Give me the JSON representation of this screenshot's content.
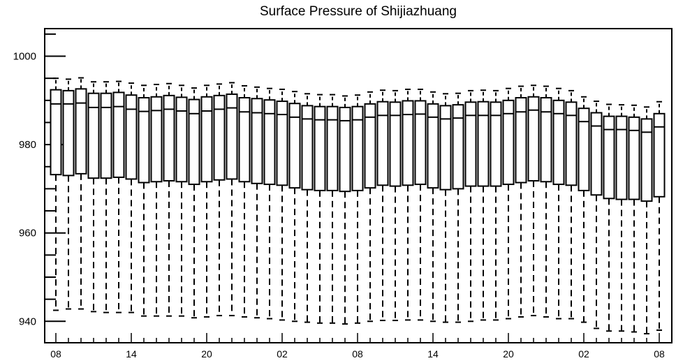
{
  "chart_data": {
    "type": "box",
    "title": "Surface Pressure of Shijiazhuang",
    "xlabel": "",
    "ylabel": "",
    "ylim": [
      935,
      1006
    ],
    "yticks": [
      940,
      960,
      980,
      1000
    ],
    "xtick_labels": [
      "08",
      "14",
      "20",
      "02",
      "08",
      "14",
      "20",
      "02",
      "08"
    ],
    "xtick_positions": [
      0,
      6,
      12,
      18,
      24,
      30,
      36,
      42,
      48
    ],
    "grid": false,
    "boxes": [
      {
        "x": 0,
        "min": 942.5,
        "q1": 973.2,
        "median": 989.2,
        "q3": 992.4,
        "max": 995.0
      },
      {
        "x": 1,
        "min": 942.8,
        "q1": 973.0,
        "median": 989.2,
        "q3": 992.2,
        "max": 994.8
      },
      {
        "x": 2,
        "min": 942.8,
        "q1": 973.4,
        "median": 989.4,
        "q3": 992.6,
        "max": 995.1
      },
      {
        "x": 3,
        "min": 942.2,
        "q1": 972.4,
        "median": 988.4,
        "q3": 991.6,
        "max": 994.2
      },
      {
        "x": 4,
        "min": 942.0,
        "q1": 972.4,
        "median": 988.4,
        "q3": 991.6,
        "max": 994.2
      },
      {
        "x": 5,
        "min": 942.0,
        "q1": 972.6,
        "median": 988.6,
        "q3": 991.8,
        "max": 994.3
      },
      {
        "x": 6,
        "min": 942.0,
        "q1": 972.2,
        "median": 988.0,
        "q3": 991.2,
        "max": 993.9
      },
      {
        "x": 7,
        "min": 941.2,
        "q1": 971.4,
        "median": 987.5,
        "q3": 990.6,
        "max": 993.4
      },
      {
        "x": 8,
        "min": 941.2,
        "q1": 971.6,
        "median": 987.7,
        "q3": 990.8,
        "max": 993.6
      },
      {
        "x": 9,
        "min": 941.2,
        "q1": 971.8,
        "median": 988.0,
        "q3": 991.1,
        "max": 993.8
      },
      {
        "x": 10,
        "min": 941.2,
        "q1": 971.6,
        "median": 987.6,
        "q3": 990.7,
        "max": 993.4
      },
      {
        "x": 11,
        "min": 940.8,
        "q1": 971.0,
        "median": 987.0,
        "q3": 990.2,
        "max": 992.8
      },
      {
        "x": 12,
        "min": 941.0,
        "q1": 971.6,
        "median": 987.6,
        "q3": 990.8,
        "max": 993.4
      },
      {
        "x": 13,
        "min": 941.3,
        "q1": 972.0,
        "median": 988.0,
        "q3": 991.1,
        "max": 993.7
      },
      {
        "x": 14,
        "min": 941.3,
        "q1": 972.2,
        "median": 988.3,
        "q3": 991.4,
        "max": 994.0
      },
      {
        "x": 15,
        "min": 941.0,
        "q1": 971.6,
        "median": 987.4,
        "q3": 990.6,
        "max": 993.3
      },
      {
        "x": 16,
        "min": 940.8,
        "q1": 971.2,
        "median": 987.2,
        "q3": 990.4,
        "max": 993.0
      },
      {
        "x": 17,
        "min": 940.6,
        "q1": 971.0,
        "median": 987.0,
        "q3": 990.1,
        "max": 992.7
      },
      {
        "x": 18,
        "min": 940.3,
        "q1": 970.8,
        "median": 986.8,
        "q3": 989.8,
        "max": 992.5
      },
      {
        "x": 19,
        "min": 940.0,
        "q1": 970.2,
        "median": 986.2,
        "q3": 989.3,
        "max": 992.0
      },
      {
        "x": 20,
        "min": 939.8,
        "q1": 969.8,
        "median": 985.8,
        "q3": 988.8,
        "max": 991.5
      },
      {
        "x": 21,
        "min": 939.6,
        "q1": 969.6,
        "median": 985.6,
        "q3": 988.6,
        "max": 991.3
      },
      {
        "x": 22,
        "min": 939.6,
        "q1": 969.6,
        "median": 985.6,
        "q3": 988.6,
        "max": 991.3
      },
      {
        "x": 23,
        "min": 939.4,
        "q1": 969.4,
        "median": 985.4,
        "q3": 988.4,
        "max": 991.0
      },
      {
        "x": 24,
        "min": 939.6,
        "q1": 969.6,
        "median": 985.6,
        "q3": 988.6,
        "max": 991.2
      },
      {
        "x": 25,
        "min": 940.0,
        "q1": 970.2,
        "median": 986.2,
        "q3": 989.2,
        "max": 991.9
      },
      {
        "x": 26,
        "min": 940.2,
        "q1": 970.8,
        "median": 986.6,
        "q3": 989.7,
        "max": 992.3
      },
      {
        "x": 27,
        "min": 940.2,
        "q1": 970.6,
        "median": 986.6,
        "q3": 989.6,
        "max": 992.2
      },
      {
        "x": 28,
        "min": 940.3,
        "q1": 970.8,
        "median": 986.8,
        "q3": 989.9,
        "max": 992.5
      },
      {
        "x": 29,
        "min": 940.3,
        "q1": 971.0,
        "median": 986.9,
        "q3": 989.9,
        "max": 992.5
      },
      {
        "x": 30,
        "min": 940.0,
        "q1": 970.2,
        "median": 986.2,
        "q3": 989.2,
        "max": 991.9
      },
      {
        "x": 31,
        "min": 939.8,
        "q1": 969.8,
        "median": 985.8,
        "q3": 988.8,
        "max": 991.5
      },
      {
        "x": 32,
        "min": 939.8,
        "q1": 970.0,
        "median": 986.0,
        "q3": 989.0,
        "max": 991.6
      },
      {
        "x": 33,
        "min": 940.0,
        "q1": 970.6,
        "median": 986.6,
        "q3": 989.6,
        "max": 992.2
      },
      {
        "x": 34,
        "min": 940.3,
        "q1": 970.6,
        "median": 986.6,
        "q3": 989.7,
        "max": 992.3
      },
      {
        "x": 35,
        "min": 940.3,
        "q1": 970.6,
        "median": 986.6,
        "q3": 989.6,
        "max": 992.2
      },
      {
        "x": 36,
        "min": 940.6,
        "q1": 971.0,
        "median": 987.0,
        "q3": 990.0,
        "max": 992.7
      },
      {
        "x": 37,
        "min": 941.0,
        "q1": 971.4,
        "median": 987.4,
        "q3": 990.6,
        "max": 993.2
      },
      {
        "x": 38,
        "min": 941.3,
        "q1": 971.8,
        "median": 987.8,
        "q3": 990.8,
        "max": 993.4
      },
      {
        "x": 39,
        "min": 941.0,
        "q1": 971.6,
        "median": 987.4,
        "q3": 990.6,
        "max": 993.2
      },
      {
        "x": 40,
        "min": 940.6,
        "q1": 971.0,
        "median": 987.0,
        "q3": 990.0,
        "max": 992.7
      },
      {
        "x": 41,
        "min": 940.6,
        "q1": 970.8,
        "median": 986.6,
        "q3": 989.6,
        "max": 992.2
      },
      {
        "x": 42,
        "min": 939.8,
        "q1": 969.6,
        "median": 985.2,
        "q3": 988.2,
        "max": 990.8
      },
      {
        "x": 43,
        "min": 938.4,
        "q1": 968.6,
        "median": 984.2,
        "q3": 987.2,
        "max": 989.8
      },
      {
        "x": 44,
        "min": 937.8,
        "q1": 967.8,
        "median": 983.4,
        "q3": 986.4,
        "max": 989.1
      },
      {
        "x": 45,
        "min": 937.8,
        "q1": 967.6,
        "median": 983.4,
        "q3": 986.4,
        "max": 989.0
      },
      {
        "x": 46,
        "min": 937.6,
        "q1": 967.6,
        "median": 983.2,
        "q3": 986.2,
        "max": 988.9
      },
      {
        "x": 47,
        "min": 937.2,
        "q1": 967.2,
        "median": 982.8,
        "q3": 985.8,
        "max": 988.5
      },
      {
        "x": 48,
        "min": 938.0,
        "q1": 968.2,
        "median": 984.0,
        "q3": 987.0,
        "max": 989.7
      }
    ]
  }
}
